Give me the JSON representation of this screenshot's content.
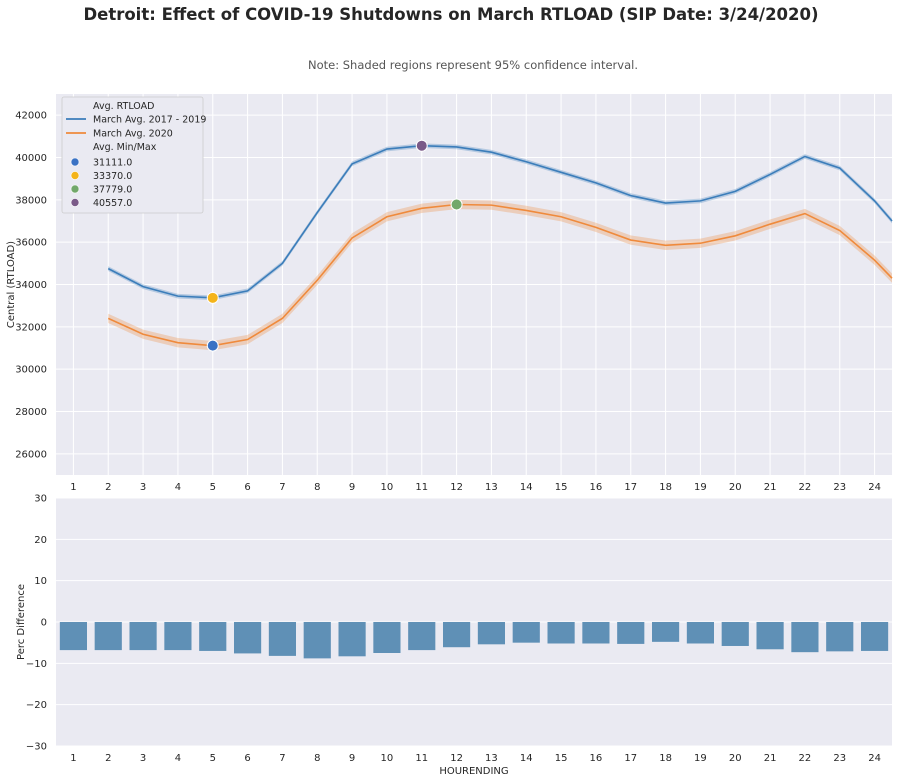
{
  "title": "Detroit: Effect of COVID-19 Shutdowns on March RTLOAD (SIP Date: 3/24/2020)",
  "subtitle": "Note: Shaded regions represent 95% confidence interval.",
  "colors": {
    "background": "#eaeaf2",
    "grid": "#ffffff",
    "series_2017_2019": "#3b7dba",
    "series_2020": "#ef8a3c",
    "bars": "#5f90b6",
    "marker_min_2020": "#3a72c4",
    "marker_min_hist": "#f4b41a",
    "marker_max_2020": "#72a86a",
    "marker_max_hist": "#7a5a88"
  },
  "chart_data": [
    {
      "type": "line",
      "ylabel": "Central (RTLOAD)",
      "xlabel": "",
      "ylim": [
        25000,
        43000
      ],
      "yticks": [
        26000,
        28000,
        30000,
        32000,
        34000,
        36000,
        38000,
        40000,
        42000
      ],
      "x": [
        1,
        2,
        3,
        4,
        5,
        6,
        7,
        8,
        9,
        10,
        11,
        12,
        13,
        14,
        15,
        16,
        17,
        18,
        19,
        20,
        21,
        22,
        23,
        24,
        24.5
      ],
      "xtick_labels": [
        "1",
        "2",
        "3",
        "4",
        "5",
        "6",
        "7",
        "8",
        "9",
        "10",
        "11",
        "12",
        "13",
        "14",
        "15",
        "16",
        "17",
        "18",
        "19",
        "20",
        "21",
        "22",
        "23",
        "24"
      ],
      "grid": true,
      "legend_position": "top-left",
      "legend": {
        "title_lines": "Avg. RTLOAD",
        "title_markers": "Avg. Min/Max"
      },
      "series": [
        {
          "name": "March Avg. 2017 - 2019",
          "values": [
            null,
            34750,
            33900,
            33450,
            33370,
            33700,
            35000,
            37400,
            39700,
            40400,
            40557,
            40500,
            40250,
            39800,
            39300,
            38800,
            38200,
            37850,
            37950,
            38400,
            39200,
            40050,
            39500,
            37950,
            37000
          ],
          "ci": 110
        },
        {
          "name": "March Avg. 2020",
          "values": [
            null,
            32400,
            31650,
            31250,
            31111,
            31400,
            32400,
            34200,
            36200,
            37200,
            37600,
            37779,
            37750,
            37500,
            37200,
            36700,
            36100,
            35850,
            35950,
            36300,
            36850,
            37350,
            36550,
            35150,
            34300
          ],
          "ci": 220
        }
      ],
      "markers": [
        {
          "name": "31111.0",
          "x": 5,
          "y": 31111,
          "color_key": "marker_min_2020"
        },
        {
          "name": "33370.0",
          "x": 5,
          "y": 33370,
          "color_key": "marker_min_hist"
        },
        {
          "name": "37779.0",
          "x": 12,
          "y": 37779,
          "color_key": "marker_max_2020"
        },
        {
          "name": "40557.0",
          "x": 11,
          "y": 40557,
          "color_key": "marker_max_hist"
        }
      ]
    },
    {
      "type": "bar",
      "ylabel": "Perc Difference",
      "xlabel": "HOURENDING",
      "ylim": [
        -30,
        30
      ],
      "yticks": [
        -30,
        -20,
        -10,
        0,
        10,
        20,
        30
      ],
      "ytick_labels": [
        "−30",
        "−20",
        "−10",
        "0",
        "10",
        "20",
        "30"
      ],
      "grid": true,
      "categories": [
        "1",
        "2",
        "3",
        "4",
        "5",
        "6",
        "7",
        "8",
        "9",
        "10",
        "11",
        "12",
        "13",
        "14",
        "15",
        "16",
        "17",
        "18",
        "19",
        "20",
        "21",
        "22",
        "23",
        "24"
      ],
      "values": [
        -6.8,
        -6.8,
        -6.8,
        -6.8,
        -7.0,
        -7.6,
        -8.2,
        -8.8,
        -8.3,
        -7.5,
        -6.8,
        -6.1,
        -5.4,
        -5.0,
        -5.2,
        -5.2,
        -5.3,
        -4.8,
        -5.2,
        -5.8,
        -6.6,
        -7.3,
        -7.1,
        -7.0
      ]
    }
  ]
}
